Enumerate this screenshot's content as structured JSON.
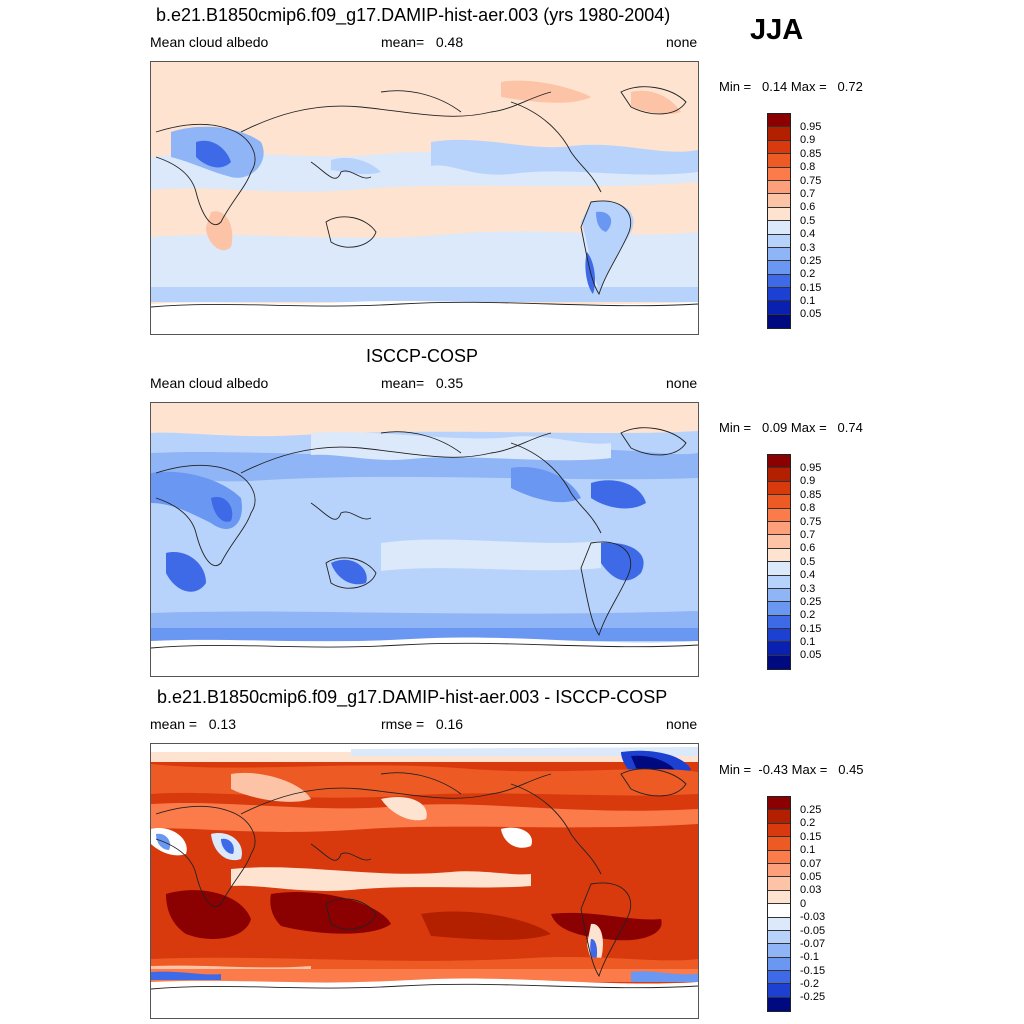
{
  "season": "JJA",
  "panels": [
    {
      "title": "b.e21.B1850cmip6.f09_g17.DAMIP-hist-aer.003 (yrs 1980-2004)",
      "left_label": "Mean cloud albedo",
      "center_label": "mean=   0.48",
      "right_label": "none",
      "min_text": "Min =   0.14",
      "max_text": "Max =   0.72"
    },
    {
      "title": "ISCCP-COSP",
      "left_label": "Mean cloud albedo",
      "center_label": "mean=   0.35",
      "right_label": "none",
      "min_text": "Min =   0.09",
      "max_text": "Max =   0.74"
    },
    {
      "title": "b.e21.B1850cmip6.f09_g17.DAMIP-hist-aer.003 - ISCCP-COSP",
      "left_label": "mean =   0.13",
      "center_label": "rmse =   0.16",
      "right_label": "none",
      "min_text": "Min =  -0.43",
      "max_text": "Max =   0.45"
    }
  ],
  "colorbar_abs": {
    "labels": [
      "0.95",
      "0.9",
      "0.85",
      "0.8",
      "0.75",
      "0.7",
      "0.6",
      "0.5",
      "0.4",
      "0.3",
      "0.25",
      "0.2",
      "0.15",
      "0.1",
      "0.05"
    ],
    "colors": [
      "#8b0000",
      "#b22000",
      "#d83a0e",
      "#ee5a24",
      "#fb7b4b",
      "#fc9f7a",
      "#fcc3a6",
      "#fde3d0",
      "#dbe9fb",
      "#b8d3fb",
      "#8fb5f6",
      "#6a97f2",
      "#3e6ae8",
      "#1c40d2",
      "#0a20b0",
      "#000a80"
    ]
  },
  "colorbar_diff": {
    "labels": [
      "0.25",
      "0.2",
      "0.15",
      "0.1",
      "0.07",
      "0.05",
      "0.03",
      "0",
      "-0.03",
      "-0.05",
      "-0.07",
      "-0.1",
      "-0.15",
      "-0.2",
      "-0.25"
    ],
    "colors": [
      "#8b0000",
      "#b22000",
      "#d83a0e",
      "#ee5a24",
      "#fb7b4b",
      "#fc9f7a",
      "#fcc3a6",
      "#fde3d0",
      "#ffffff",
      "#dbe9fb",
      "#b8d3fb",
      "#8fb5f6",
      "#6a97f2",
      "#3e6ae8",
      "#1c40d2",
      "#000a80"
    ]
  }
}
